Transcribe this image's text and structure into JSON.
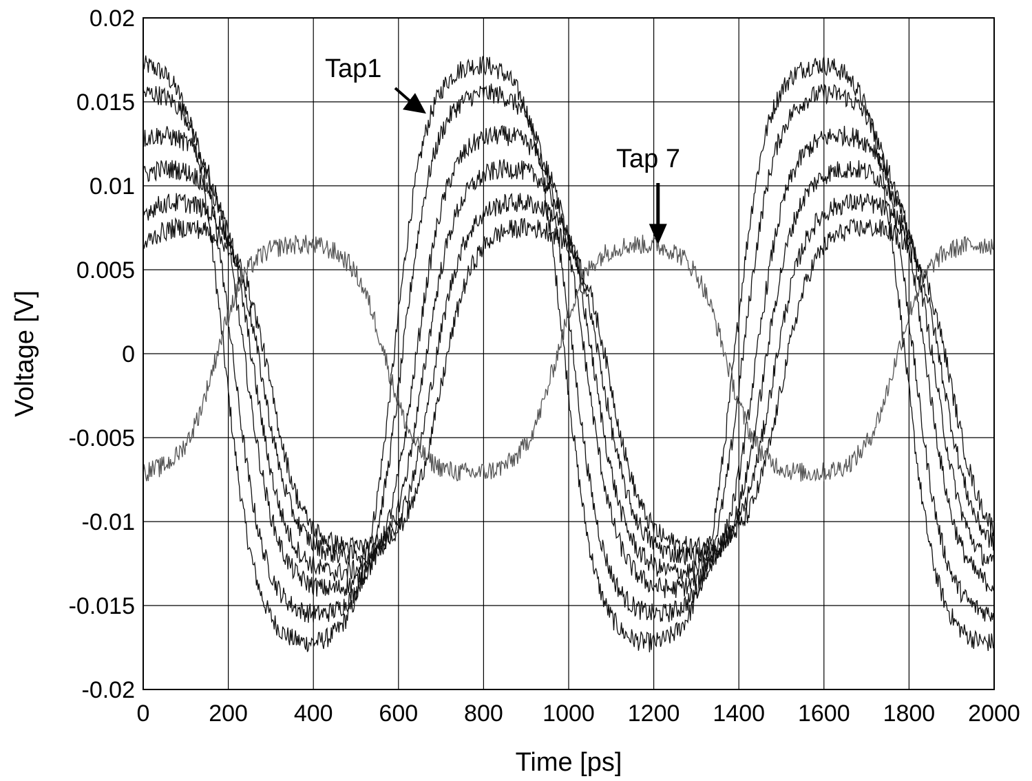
{
  "chart_data": {
    "type": "line",
    "title": "",
    "xlabel": "Time [ps]",
    "ylabel": "Voltage [V]",
    "xlim": [
      0,
      2000
    ],
    "ylim": [
      -0.02,
      0.02
    ],
    "x_ticks": [
      0,
      200,
      400,
      600,
      800,
      1000,
      1200,
      1400,
      1600,
      1800,
      2000
    ],
    "x_tick_labels": [
      "0",
      "200",
      "400",
      "600",
      "800",
      "1000",
      "1200",
      "1400",
      "1600",
      "1800",
      "2000"
    ],
    "y_ticks": [
      -0.02,
      -0.015,
      -0.01,
      -0.005,
      0,
      0.005,
      0.01,
      0.015,
      0.02
    ],
    "y_tick_labels": [
      "-0.02",
      "-0.015",
      "-0.01",
      "-0.005",
      "0",
      "0.005",
      "0.01",
      "0.015",
      "0.02"
    ],
    "grid": true,
    "legend": "none",
    "period_ps": 800,
    "series": [
      {
        "color": "#111111",
        "peak_time_ps": 790,
        "amplitude_v": 0.0172,
        "offset_v": 0.0
      },
      {
        "color": "#111111",
        "peak_time_ps": 810,
        "amplitude_v": 0.0155,
        "offset_v": 0.0
      },
      {
        "color": "#111111",
        "peak_time_ps": 840,
        "amplitude_v": 0.0135,
        "offset_v": -0.0005
      },
      {
        "color": "#111111",
        "peak_time_ps": 860,
        "amplitude_v": 0.012,
        "offset_v": -0.001
      },
      {
        "color": "#111111",
        "peak_time_ps": 880,
        "amplitude_v": 0.0105,
        "offset_v": -0.0015
      },
      {
        "color": "#111111",
        "peak_time_ps": 900,
        "amplitude_v": 0.0095,
        "offset_v": -0.002
      },
      {
        "color": "#555555",
        "peak_time_ps": 1170,
        "amplitude_v": 0.0068,
        "offset_v": -0.0003
      }
    ],
    "annotations": [
      {
        "text": "Tap1",
        "points_to": [
          665,
          0.0143
        ]
      },
      {
        "text": "Tap 7",
        "points_to": [
          1210,
          0.0065
        ]
      }
    ]
  }
}
